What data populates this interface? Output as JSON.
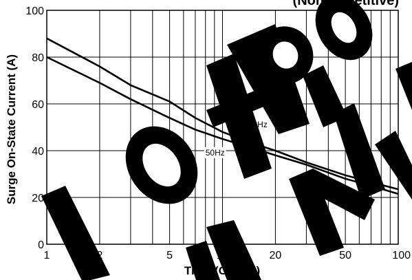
{
  "chart_data": {
    "type": "line",
    "subtitle": "(Non-Repetitive)",
    "xlabel": "Time (Cycles)",
    "ylabel": "Surge On-State Current (A)",
    "x_scale": "log",
    "xlim": [
      1,
      100
    ],
    "ylim": [
      0,
      100
    ],
    "x_ticks": [
      1,
      2,
      5,
      10,
      20,
      50,
      100
    ],
    "x_tick_labels": [
      "1",
      "2",
      "5",
      "10",
      "20",
      "50",
      "100"
    ],
    "y_ticks": [
      0,
      20,
      40,
      60,
      80,
      100
    ],
    "y_tick_labels": [
      "0",
      "20",
      "40",
      "60",
      "80",
      "100"
    ],
    "grid": true,
    "series": [
      {
        "name": "60Hz",
        "x": [
          1,
          2,
          3,
          5,
          7,
          10,
          15,
          20,
          30,
          50,
          70,
          100
        ],
        "y": [
          88,
          76,
          68,
          61,
          54,
          48,
          43,
          40,
          35,
          29.5,
          26.5,
          23.5
        ]
      },
      {
        "name": "50Hz",
        "x": [
          1,
          2,
          3,
          5,
          7,
          10,
          15,
          20,
          30,
          50,
          70,
          100
        ],
        "y": [
          80,
          69,
          62,
          54,
          49,
          45,
          41,
          38,
          34,
          28,
          25,
          21.5
        ]
      }
    ],
    "annotations": [
      {
        "text": "60Hz",
        "x": 14,
        "y": 50
      },
      {
        "text": "50Hz",
        "x": 8,
        "y": 38
      }
    ],
    "watermark": "Not Recommended for New Design"
  }
}
